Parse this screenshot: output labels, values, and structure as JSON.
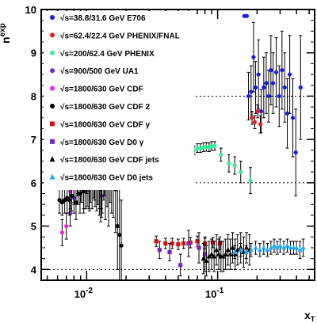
{
  "chart_data": {
    "type": "scatter",
    "title": "",
    "xlabel": "x",
    "xlabel_sub": "T",
    "ylabel_base": "n",
    "ylabel_sup": "exp",
    "xscale": "log",
    "xlim": [
      0.0045,
      0.55
    ],
    "ylim": [
      3.75,
      10.0
    ],
    "grid": false,
    "legend_position": "top-left",
    "y_ticks": [
      4,
      5,
      6,
      7,
      8,
      9,
      10
    ],
    "x_tick_labels": [
      {
        "value": 0.01,
        "base": "10",
        "exp": "-2"
      },
      {
        "value": 0.1,
        "base": "10",
        "exp": "-1"
      }
    ],
    "reference_lines_y": [
      4,
      6,
      8
    ],
    "series": [
      {
        "name": "√s=38.8/31.6 GeV E706",
        "color": "#1a1ae6",
        "marker": "circle",
        "points": [
          [
            0.16,
            9.85,
            0.0
          ],
          [
            0.167,
            9.85,
            0.0
          ],
          [
            0.172,
            8.0,
            0.55
          ],
          [
            0.18,
            8.1,
            0.6
          ],
          [
            0.188,
            8.9,
            0.8
          ],
          [
            0.195,
            8.2,
            0.6
          ],
          [
            0.205,
            8.5,
            0.8
          ],
          [
            0.215,
            7.65,
            0.5
          ],
          [
            0.225,
            8.2,
            0.7
          ],
          [
            0.235,
            8.3,
            0.7
          ],
          [
            0.245,
            8.0,
            0.6
          ],
          [
            0.255,
            8.6,
            0.8
          ],
          [
            0.265,
            8.3,
            0.7
          ],
          [
            0.28,
            8.55,
            0.8
          ],
          [
            0.295,
            8.0,
            0.7
          ],
          [
            0.31,
            8.6,
            0.9
          ],
          [
            0.325,
            8.2,
            0.8
          ],
          [
            0.34,
            7.6,
            0.8
          ],
          [
            0.355,
            8.5,
            0.9
          ],
          [
            0.375,
            7.5,
            0.9
          ],
          [
            0.395,
            6.7,
            1.0
          ],
          [
            0.43,
            8.2,
            1.2
          ]
        ]
      },
      {
        "name": "√s=62.4/22.4 GeV PHENIX/FNAL",
        "color": "#e61a1a",
        "marker": "circle",
        "points": [
          [
            0.183,
            7.5,
            0.15
          ],
          [
            0.192,
            7.4,
            0.15
          ],
          [
            0.202,
            7.65,
            0.15
          ],
          [
            0.212,
            7.35,
            0.2
          ]
        ]
      },
      {
        "name": "√s=200/62.4 GeV PHENIX",
        "color": "#33ee99",
        "marker": "circle",
        "points": [
          [
            0.066,
            6.75,
            0.1
          ],
          [
            0.07,
            6.8,
            0.1
          ],
          [
            0.074,
            6.8,
            0.1
          ],
          [
            0.078,
            6.82,
            0.1
          ],
          [
            0.082,
            6.83,
            0.1
          ],
          [
            0.086,
            6.82,
            0.1
          ],
          [
            0.09,
            6.85,
            0.1
          ],
          [
            0.095,
            6.85,
            0.1
          ],
          [
            0.106,
            6.65,
            0.15
          ],
          [
            0.122,
            6.45,
            0.2
          ],
          [
            0.135,
            6.4,
            0.2
          ],
          [
            0.15,
            6.25,
            0.25
          ],
          [
            0.178,
            6.05,
            0.3
          ]
        ]
      },
      {
        "name": "√s=900/500 GeV UA1",
        "color": "#7722dd",
        "marker": "circle",
        "points": [
          [
            0.0075,
            5.3,
            0.3
          ],
          [
            0.008,
            5.65,
            0.35
          ],
          [
            0.0085,
            6.15,
            0.45
          ],
          [
            0.009,
            6.3,
            0.45
          ],
          [
            0.0095,
            6.55,
            0.5
          ],
          [
            0.01,
            6.2,
            0.45
          ],
          [
            0.0105,
            6.3,
            0.5
          ],
          [
            0.011,
            6.75,
            0.55
          ],
          [
            0.0115,
            6.1,
            0.5
          ],
          [
            0.012,
            6.6,
            0.55
          ],
          [
            0.0125,
            5.9,
            0.5
          ],
          [
            0.013,
            5.7,
            0.5
          ],
          [
            0.0137,
            6.2,
            0.5
          ]
        ]
      },
      {
        "name": "√s=1800/630 GeV CDF",
        "color": "#ee22ee",
        "marker": "circle",
        "points": [
          [
            0.0065,
            4.85,
            0.3
          ],
          [
            0.007,
            5.0,
            0.3
          ],
          [
            0.0075,
            5.8,
            0.4
          ],
          [
            0.008,
            6.0,
            0.45
          ],
          [
            0.0085,
            6.25,
            0.5
          ],
          [
            0.009,
            6.05,
            0.5
          ],
          [
            0.0095,
            5.9,
            0.5
          ],
          [
            0.01,
            6.35,
            0.55
          ],
          [
            0.0105,
            5.85,
            0.5
          ],
          [
            0.011,
            6.45,
            0.55
          ],
          [
            0.012,
            6.55,
            0.6
          ],
          [
            0.013,
            5.95,
            0.55
          ]
        ]
      },
      {
        "name": "√s=1800/630 GeV CDF 2",
        "color": "#000000",
        "marker": "circle",
        "points": [
          [
            0.0062,
            5.6,
            0.3
          ],
          [
            0.0065,
            5.55,
            0.3
          ],
          [
            0.0068,
            5.6,
            0.3
          ],
          [
            0.0071,
            5.65,
            0.35
          ],
          [
            0.0074,
            5.6,
            0.35
          ],
          [
            0.0077,
            5.7,
            0.35
          ],
          [
            0.008,
            5.9,
            0.4
          ],
          [
            0.0083,
            5.55,
            0.4
          ],
          [
            0.0086,
            5.95,
            0.45
          ],
          [
            0.0089,
            5.75,
            0.45
          ],
          [
            0.0092,
            6.05,
            0.5
          ],
          [
            0.0095,
            5.8,
            0.5
          ],
          [
            0.0098,
            5.9,
            0.5
          ],
          [
            0.0101,
            6.0,
            0.55
          ],
          [
            0.0104,
            5.95,
            0.55
          ],
          [
            0.0107,
            6.15,
            0.6
          ],
          [
            0.011,
            6.0,
            0.6
          ],
          [
            0.0113,
            6.3,
            0.65
          ],
          [
            0.0116,
            6.1,
            0.65
          ],
          [
            0.0119,
            6.05,
            0.7
          ],
          [
            0.0122,
            6.2,
            0.7
          ],
          [
            0.0125,
            6.0,
            0.75
          ],
          [
            0.0128,
            5.85,
            0.75
          ],
          [
            0.0131,
            6.1,
            0.8
          ],
          [
            0.0135,
            6.4,
            0.8
          ],
          [
            0.0139,
            6.0,
            0.85
          ],
          [
            0.0143,
            6.3,
            0.85
          ],
          [
            0.0147,
            5.9,
            0.9
          ],
          [
            0.0151,
            6.45,
            0.9
          ],
          [
            0.0155,
            6.25,
            0.95
          ],
          [
            0.016,
            6.15,
            0.95
          ],
          [
            0.0166,
            5.85,
            1.0
          ],
          [
            0.0172,
            5.0,
            1.0
          ],
          [
            0.0178,
            4.8,
            1.05
          ],
          [
            0.0184,
            4.55,
            1.05
          ]
        ]
      },
      {
        "name": "√s=1800/630 GeV CDF γ",
        "color": "#dd1111",
        "marker": "square",
        "points": [
          [
            0.034,
            4.65,
            0.12
          ],
          [
            0.04,
            4.6,
            0.12
          ],
          [
            0.045,
            4.6,
            0.12
          ],
          [
            0.05,
            4.58,
            0.12
          ],
          [
            0.055,
            4.6,
            0.12
          ],
          [
            0.062,
            4.62,
            0.12
          ],
          [
            0.07,
            4.65,
            0.12
          ],
          [
            0.08,
            4.6,
            0.12
          ],
          [
            0.092,
            4.62,
            0.12
          ],
          [
            0.104,
            4.6,
            0.15
          ]
        ]
      },
      {
        "name": "√s=1800/630 GeV D0 γ",
        "color": "#7722cc",
        "marker": "square",
        "points": [
          [
            0.036,
            4.45,
            0.2
          ],
          [
            0.043,
            4.4,
            0.2
          ],
          [
            0.052,
            4.1,
            0.25
          ],
          [
            0.06,
            4.6,
            0.3
          ],
          [
            0.072,
            4.5,
            0.35
          ],
          [
            0.08,
            4.35,
            0.4
          ]
        ]
      },
      {
        "name": "√s=1800/630 GeV CDF jets",
        "color": "#000000",
        "marker": "triangle",
        "points": [
          [
            0.078,
            4.25,
            0.35
          ],
          [
            0.082,
            4.2,
            0.35
          ],
          [
            0.086,
            4.3,
            0.35
          ],
          [
            0.09,
            4.35,
            0.35
          ],
          [
            0.094,
            4.3,
            0.35
          ],
          [
            0.098,
            4.45,
            0.35
          ],
          [
            0.102,
            4.35,
            0.35
          ],
          [
            0.106,
            4.3,
            0.35
          ],
          [
            0.11,
            4.3,
            0.35
          ],
          [
            0.115,
            4.35,
            0.35
          ],
          [
            0.12,
            4.45,
            0.35
          ],
          [
            0.125,
            4.35,
            0.35
          ],
          [
            0.13,
            4.5,
            0.35
          ],
          [
            0.136,
            4.35,
            0.35
          ],
          [
            0.142,
            4.45,
            0.35
          ],
          [
            0.15,
            4.5,
            0.35
          ],
          [
            0.158,
            4.4,
            0.35
          ],
          [
            0.166,
            4.5,
            0.35
          ],
          [
            0.175,
            4.45,
            0.35
          ]
        ]
      },
      {
        "name": "√s=1800/630 GeV D0 jets",
        "color": "#22aaee",
        "marker": "triangle",
        "points": [
          [
            0.135,
            4.4,
            0.15
          ],
          [
            0.15,
            4.45,
            0.15
          ],
          [
            0.165,
            4.4,
            0.15
          ],
          [
            0.18,
            4.45,
            0.15
          ],
          [
            0.195,
            4.5,
            0.15
          ],
          [
            0.21,
            4.45,
            0.15
          ],
          [
            0.225,
            4.5,
            0.15
          ],
          [
            0.24,
            4.45,
            0.15
          ],
          [
            0.255,
            4.5,
            0.15
          ],
          [
            0.27,
            4.55,
            0.15
          ],
          [
            0.285,
            4.5,
            0.15
          ],
          [
            0.3,
            4.55,
            0.15
          ],
          [
            0.32,
            4.5,
            0.15
          ],
          [
            0.34,
            4.55,
            0.15
          ],
          [
            0.36,
            4.5,
            0.15
          ],
          [
            0.38,
            4.5,
            0.15
          ],
          [
            0.4,
            4.5,
            0.15
          ],
          [
            0.425,
            4.45,
            0.2
          ],
          [
            0.45,
            4.5,
            0.2
          ]
        ]
      }
    ]
  }
}
